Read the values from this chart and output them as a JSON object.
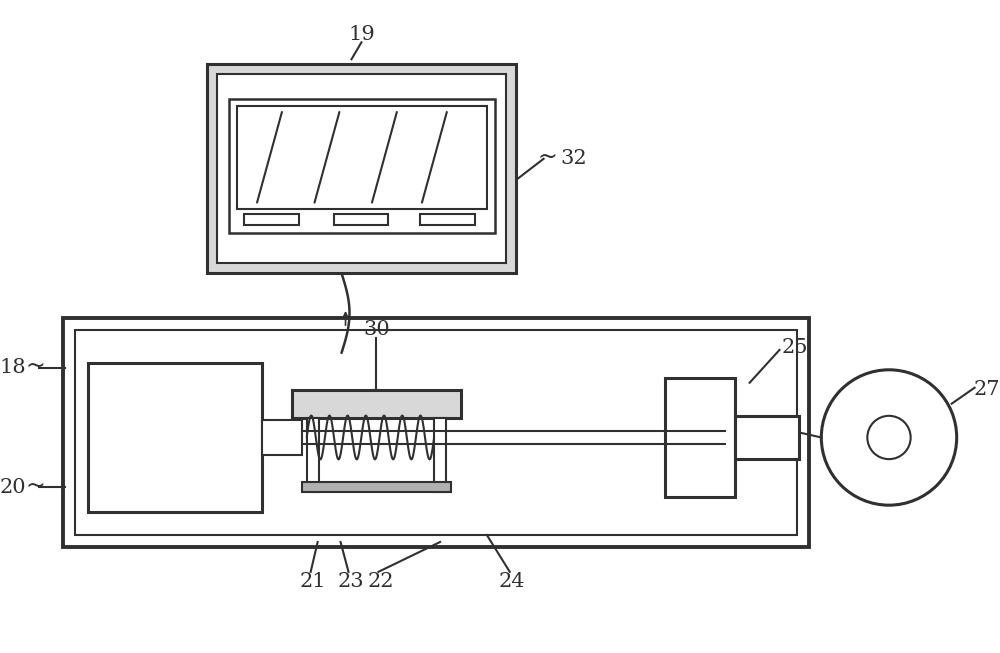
{
  "bg_color": "#ffffff",
  "line_color": "#303030",
  "label_color": "#303030",
  "gray_fill": "#b0b0b0",
  "light_gray": "#d8d8d8",
  "figsize": [
    10.0,
    6.53
  ],
  "dpi": 100
}
